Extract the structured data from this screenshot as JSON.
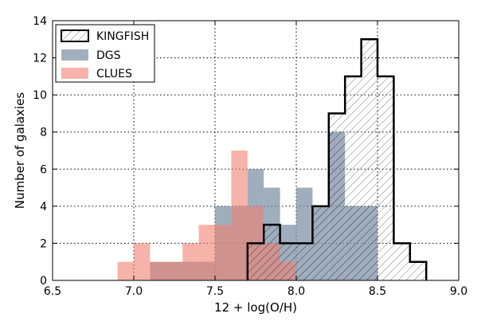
{
  "chart_data": {
    "type": "histogram",
    "title": "",
    "xlabel": "12 + log(O/H)",
    "ylabel": "Number of galaxies",
    "xlim": [
      6.5,
      9.0
    ],
    "ylim": [
      0,
      14
    ],
    "xticks": [
      6.5,
      7.0,
      7.5,
      8.0,
      8.5,
      9.0
    ],
    "xtick_labels": [
      "6.5",
      "7.0",
      "7.5",
      "8.0",
      "8.5",
      "9.0"
    ],
    "yticks": [
      0,
      2,
      4,
      6,
      8,
      10,
      12,
      14
    ],
    "ytick_labels": [
      "0",
      "2",
      "4",
      "6",
      "8",
      "10",
      "12",
      "14"
    ],
    "grid": true,
    "legend_position": "top-left",
    "bin_edges": [
      6.9,
      7.0,
      7.1,
      7.2,
      7.3,
      7.4,
      7.5,
      7.6,
      7.7,
      7.8,
      7.9,
      8.0,
      8.1,
      8.2,
      8.3,
      8.4,
      8.5,
      8.6,
      8.7,
      8.8
    ],
    "series": [
      {
        "name": "KINGFISH",
        "style": "hatched-outline",
        "color": "#000000",
        "values": [
          0,
          0,
          0,
          0,
          0,
          0,
          0,
          0,
          2,
          3,
          2,
          2,
          4,
          9,
          11,
          13,
          11,
          2,
          1
        ]
      },
      {
        "name": "DGS",
        "style": "filled",
        "color": "#7a8ea3",
        "values": [
          0,
          0,
          1,
          1,
          1,
          1,
          4,
          4,
          6,
          5,
          3,
          5,
          4,
          8,
          4,
          4,
          0,
          0,
          0
        ]
      },
      {
        "name": "CLUES",
        "style": "filled",
        "color": "#f08070",
        "values": [
          1,
          2,
          1,
          1,
          2,
          3,
          3,
          7,
          4,
          2,
          1,
          0,
          0,
          0,
          0,
          0,
          0,
          0,
          0
        ]
      }
    ]
  }
}
